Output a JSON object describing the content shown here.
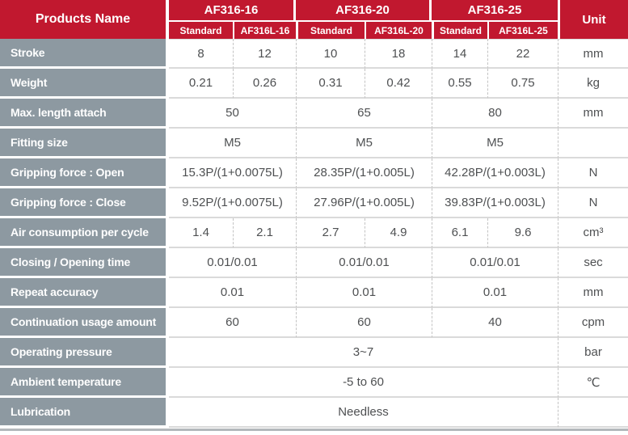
{
  "table": {
    "corner_label": "Products Name",
    "unit_label": "Unit",
    "groups": [
      {
        "label": "AF316-16",
        "sub": [
          "Standard",
          "AF316L-16"
        ]
      },
      {
        "label": "AF316-20",
        "sub": [
          "Standard",
          "AF316L-20"
        ]
      },
      {
        "label": "AF316-25",
        "sub": [
          "Standard",
          "AF316L-25"
        ]
      }
    ],
    "rows": [
      {
        "label": "Stroke",
        "values": [
          "8",
          "12",
          "10",
          "18",
          "14",
          "22"
        ],
        "unit": "mm"
      },
      {
        "label": "Weight",
        "values": [
          "0.21",
          "0.26",
          "0.31",
          "0.42",
          "0.55",
          "0.75"
        ],
        "unit": "kg"
      },
      {
        "label": "Max. length attach",
        "values": [
          "50",
          "65",
          "80"
        ],
        "unit": "mm"
      },
      {
        "label": "Fitting size",
        "values": [
          "M5",
          "M5",
          "M5"
        ],
        "unit": ""
      },
      {
        "label": "Gripping force : Open",
        "values": [
          "15.3P/(1+0.0075L)",
          "28.35P/(1+0.005L)",
          "42.28P/(1+0.003L)"
        ],
        "unit": "N"
      },
      {
        "label": "Gripping force : Close",
        "values": [
          "9.52P/(1+0.0075L)",
          "27.96P/(1+0.005L)",
          "39.83P/(1+0.003L)"
        ],
        "unit": "N"
      },
      {
        "label": "Air consumption per cycle",
        "values": [
          "1.4",
          "2.1",
          "2.7",
          "4.9",
          "6.1",
          "9.6"
        ],
        "unit": "cm³"
      },
      {
        "label": "Closing / Opening time",
        "values": [
          "0.01/0.01",
          "0.01/0.01",
          "0.01/0.01"
        ],
        "unit": "sec"
      },
      {
        "label": "Repeat accuracy",
        "values": [
          "0.01",
          "0.01",
          "0.01"
        ],
        "unit": "mm"
      },
      {
        "label": "Continuation usage amount",
        "values": [
          "60",
          "60",
          "40"
        ],
        "unit": "cpm"
      },
      {
        "label": "Operating pressure",
        "values": [
          "3~7"
        ],
        "unit": "bar"
      },
      {
        "label": "Ambient temperature",
        "values": [
          "-5 to 60"
        ],
        "unit": "℃"
      },
      {
        "label": "Lubrication",
        "values": [
          "Needless"
        ],
        "unit": ""
      }
    ],
    "colors": {
      "header_red": "#c1182f",
      "label_gray": "#8d99a1",
      "value_text": "#4e5052"
    }
  }
}
